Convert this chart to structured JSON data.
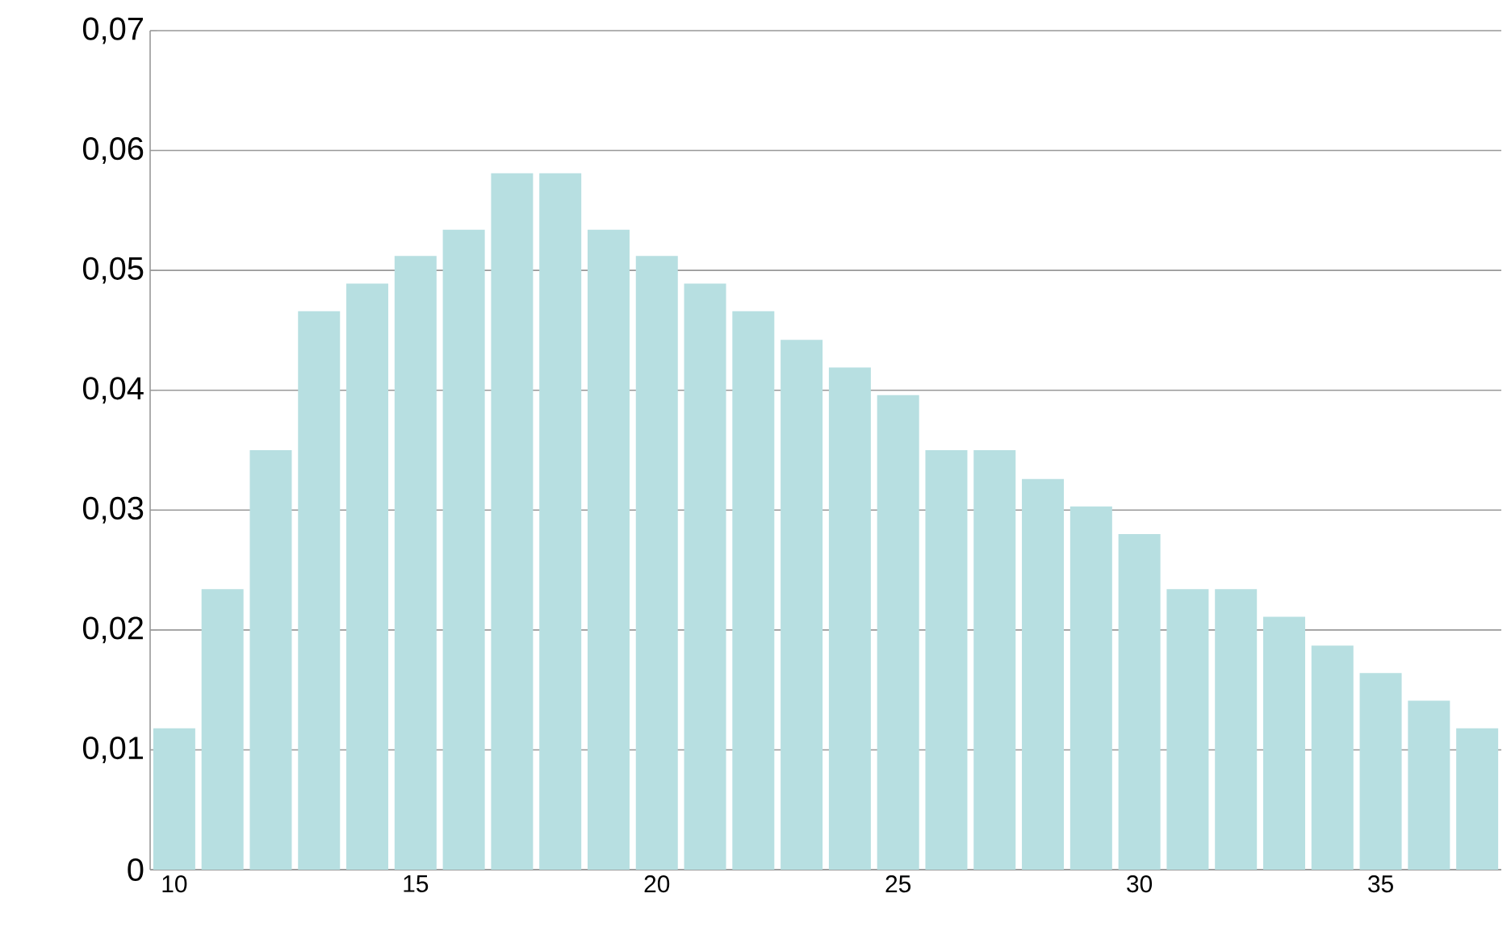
{
  "chart_data": {
    "type": "bar",
    "categories": [
      "10",
      null,
      null,
      null,
      null,
      "15",
      null,
      null,
      null,
      null,
      "20",
      null,
      null,
      null,
      null,
      "25",
      null,
      null,
      null,
      null,
      "30",
      null,
      null,
      null,
      null,
      "35",
      null,
      null
    ],
    "values": [
      0.0118,
      0.0234,
      0.035,
      0.0466,
      0.0489,
      0.0512,
      0.0534,
      0.0581,
      0.0581,
      0.0534,
      0.0512,
      0.0489,
      0.0466,
      0.0442,
      0.0419,
      0.0396,
      0.035,
      0.035,
      0.0326,
      0.0303,
      0.028,
      0.0234,
      0.0234,
      0.0211,
      0.0187,
      0.0164,
      0.0141,
      0.0118
    ],
    "color": "#b7dfe1",
    "ylim": [
      0,
      0.07
    ],
    "yticks": [
      0,
      {
        "value": 0.01,
        "label": "0,01"
      },
      {
        "value": 0.02,
        "label": "0,02"
      },
      {
        "value": 0.03,
        "label": "0,03"
      },
      {
        "value": 0.04,
        "label": "0,04"
      },
      {
        "value": 0.05,
        "label": "0,05"
      },
      {
        "value": 0.06,
        "label": "0,06"
      },
      {
        "value": 0.07,
        "label": "0,07"
      }
    ],
    "grid": "y"
  }
}
